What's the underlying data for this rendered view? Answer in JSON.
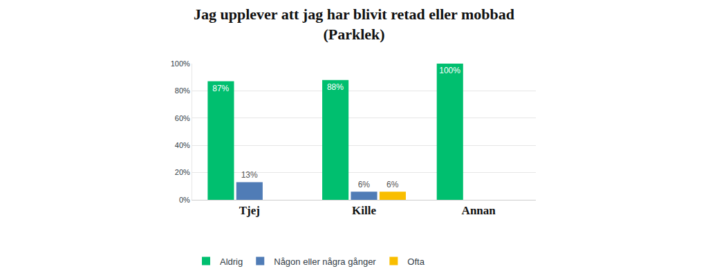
{
  "chart_data": {
    "type": "bar",
    "title": "Jag upplever att jag har blivit retad eller mobbad",
    "subtitle": "(Parklek)",
    "categories": [
      "Tjej",
      "Kille",
      "Annan"
    ],
    "series": [
      {
        "name": "Aldrig",
        "color": "#00bf6f",
        "values": [
          87,
          88,
          100
        ],
        "value_labels": [
          "87%",
          "88%",
          "100%"
        ]
      },
      {
        "name": "Någon eller några gånger",
        "color": "#507cb6",
        "values": [
          13,
          6,
          null
        ],
        "value_labels": [
          "13%",
          "6%",
          null
        ]
      },
      {
        "name": "Ofta",
        "color": "#f9be00",
        "values": [
          null,
          6,
          null
        ],
        "value_labels": [
          null,
          "6%",
          null
        ]
      }
    ],
    "ylim": [
      0,
      100
    ],
    "yticks": [
      {
        "value": 0,
        "label": "0%"
      },
      {
        "value": 20,
        "label": "20%"
      },
      {
        "value": 40,
        "label": "40%"
      },
      {
        "value": 60,
        "label": "60%"
      },
      {
        "value": 80,
        "label": "80%"
      },
      {
        "value": 100,
        "label": "100%"
      }
    ],
    "grid": true,
    "data_labels": true,
    "legend": "bottom left"
  }
}
